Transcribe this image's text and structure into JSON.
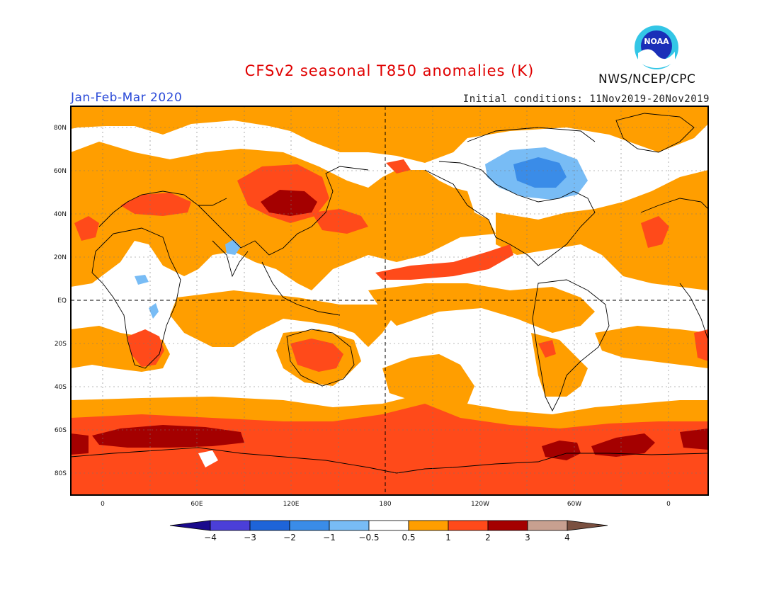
{
  "title": "CFSv2 seasonal T850 anomalies (K)",
  "period": "Jan-Feb-Mar 2020",
  "initial_conditions": "Initial conditions: 11Nov2019-20Nov2019",
  "agency": "NWS/NCEP/CPC",
  "logo_text": "NOAA",
  "colors": {
    "title": "#e00000",
    "period": "#2a4ad8",
    "warm1": "#ff9e00",
    "warm2": "#ff4a1a",
    "warm3": "#a40000",
    "cold1": "#5aa6f0",
    "cold2": "#2f7de0"
  },
  "axes": {
    "lat_ticks": [
      "80N",
      "60N",
      "40N",
      "20N",
      "EQ",
      "20S",
      "40S",
      "60S",
      "80S"
    ],
    "lon_ticks": [
      "0",
      "60E",
      "120E",
      "180",
      "120W",
      "60W",
      "0"
    ]
  },
  "colorbar": {
    "labels": [
      "−4",
      "−3",
      "−2",
      "−1",
      "−0.5",
      "0.5",
      "1",
      "2",
      "3",
      "4"
    ],
    "colors": [
      "#1a0a8c",
      "#4b3fd8",
      "#1e64d8",
      "#3a8ce8",
      "#78bcf5",
      "#ffffff",
      "#ff9e00",
      "#ff4a1a",
      "#a40000",
      "#c8a090",
      "#7a5040"
    ]
  }
}
